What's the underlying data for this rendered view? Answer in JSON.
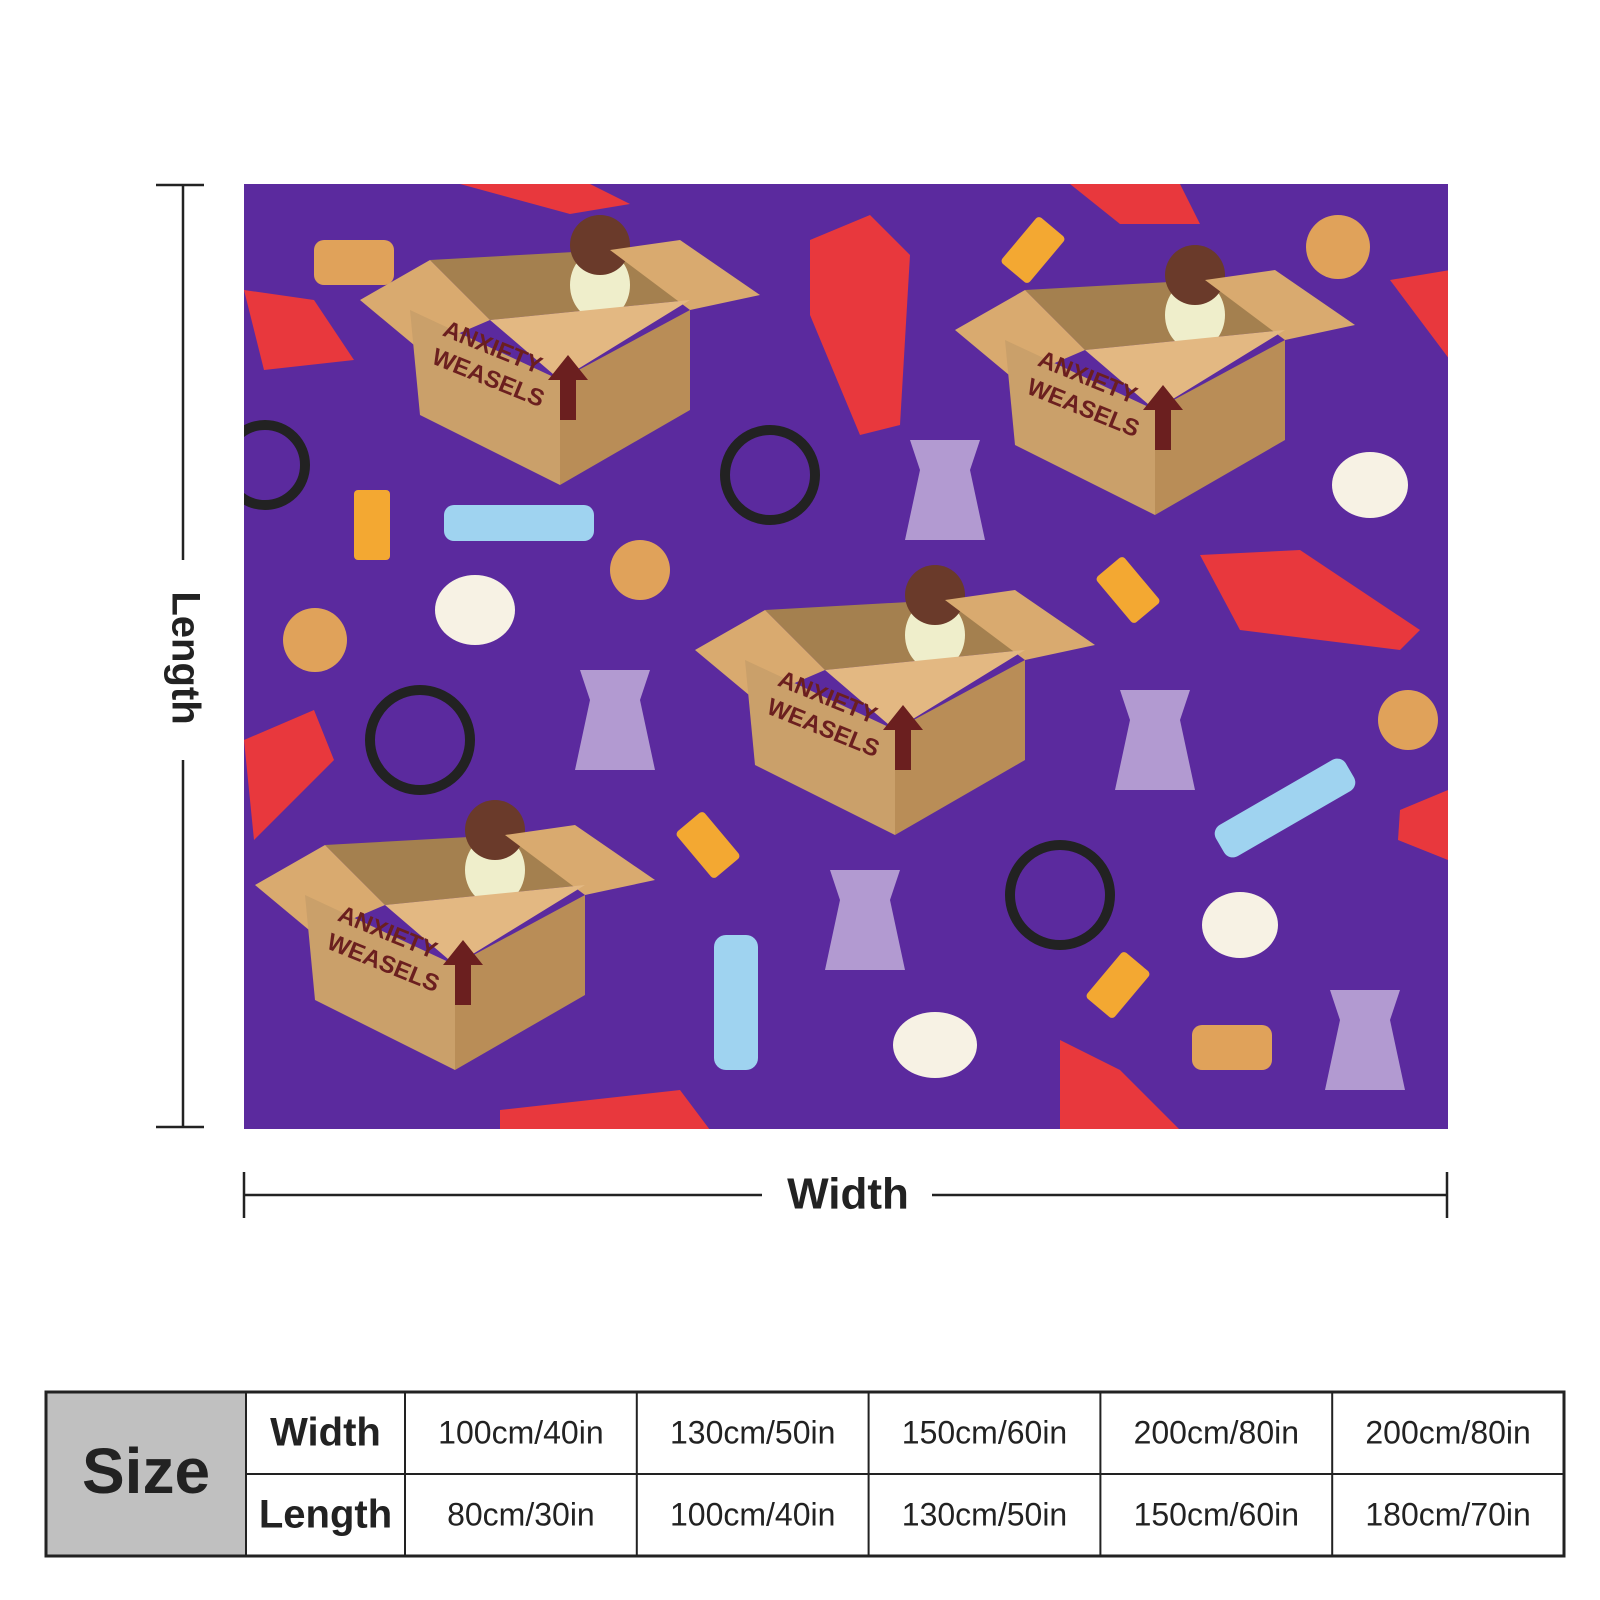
{
  "pattern": {
    "box_label": [
      "ANXIETY",
      "WEASELS"
    ]
  },
  "dimensions": {
    "length": "Length",
    "width": "Width"
  },
  "table": {
    "header": "Size",
    "rows": [
      [
        "Width",
        "100cm/40in",
        "130cm/50in",
        "150cm/60in",
        "200cm/80in",
        "200cm/80in"
      ],
      [
        "Length",
        "80cm/30in",
        "100cm/40in",
        "130cm/50in",
        "150cm/60in",
        "180cm/70in"
      ]
    ]
  }
}
